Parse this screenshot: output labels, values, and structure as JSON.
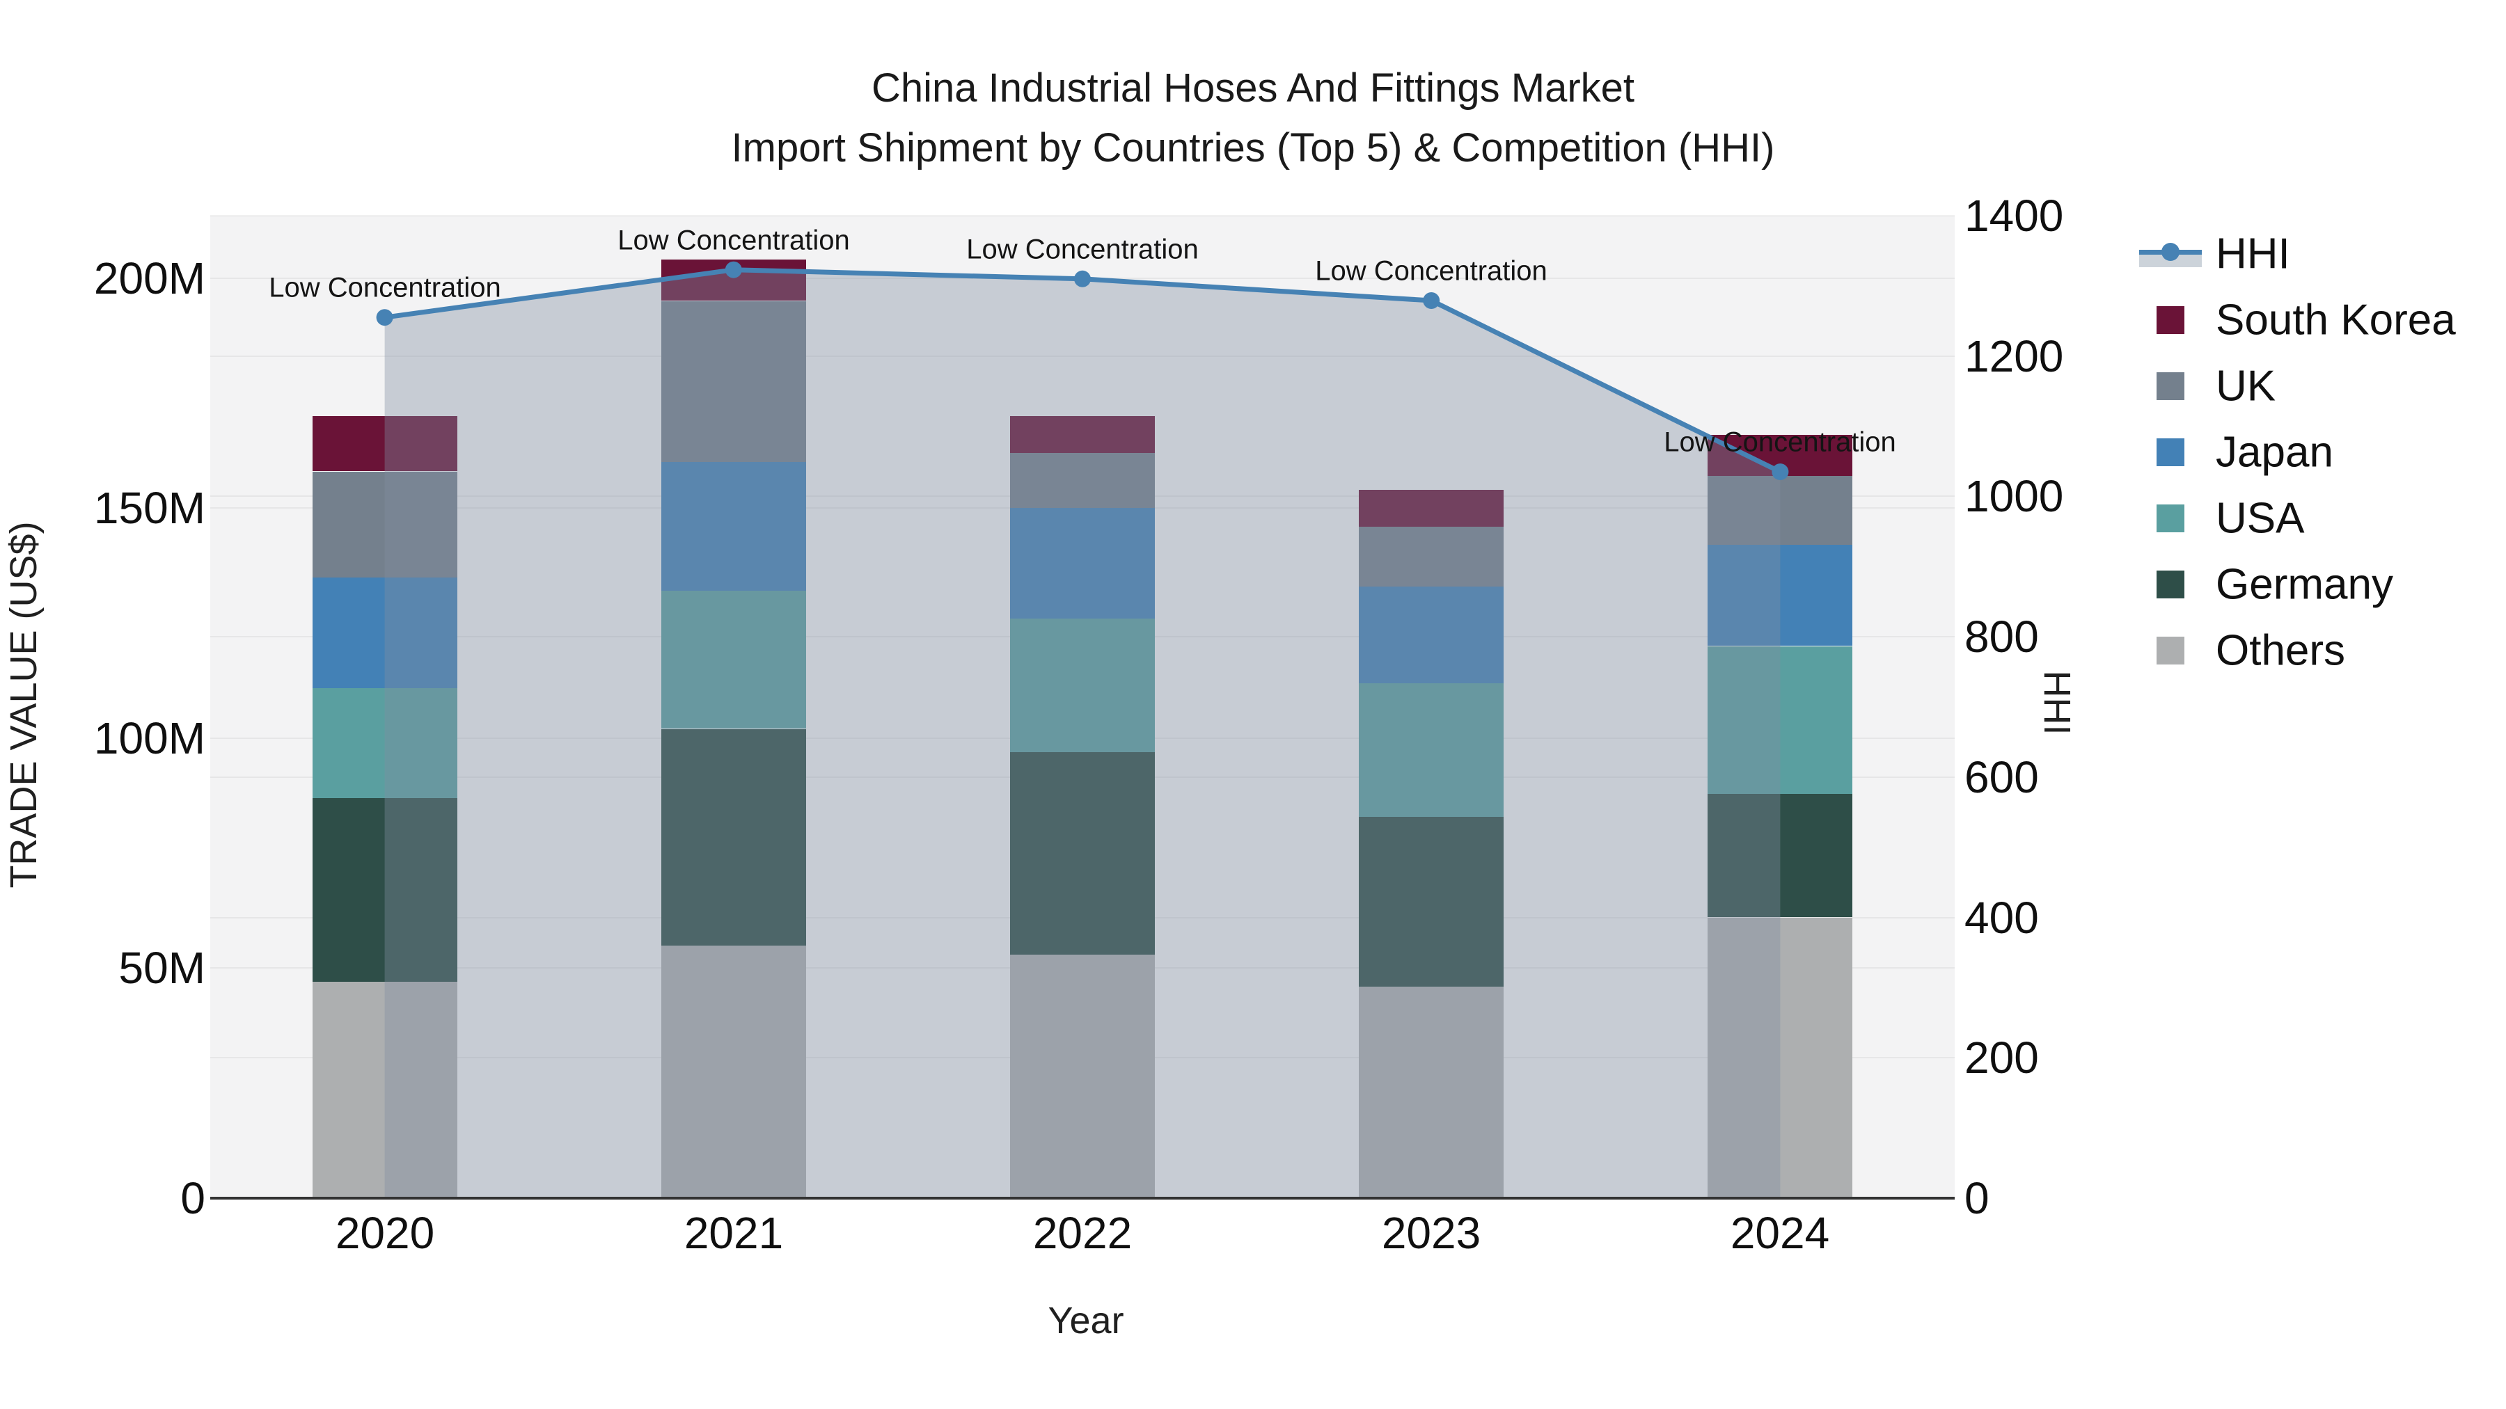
{
  "title": {
    "line1": "China Industrial Hoses And Fittings Market",
    "line2": "Import Shipment by Countries (Top 5) & Competition (HHI)"
  },
  "axes": {
    "y_left": {
      "title": "TRADE VALUE (US$)",
      "tick_labels": [
        "0",
        "50M",
        "100M",
        "150M",
        "200M"
      ],
      "tick_values": [
        0,
        50,
        100,
        150,
        200
      ]
    },
    "y_right": {
      "title": "HHI",
      "tick_labels": [
        "0",
        "200",
        "400",
        "600",
        "800",
        "1000",
        "1200",
        "1400"
      ],
      "tick_values": [
        0,
        200,
        400,
        600,
        800,
        1000,
        1200,
        1400
      ]
    },
    "x": {
      "title": "Year",
      "tick_labels": [
        "2020",
        "2021",
        "2022",
        "2023",
        "2024"
      ]
    }
  },
  "legend": {
    "items": [
      {
        "label": "HHI",
        "type": "line",
        "color": "#4682B4"
      },
      {
        "label": "South Korea",
        "type": "square",
        "color": "#6A1337"
      },
      {
        "label": "UK",
        "type": "square",
        "color": "#74808D"
      },
      {
        "label": "Japan",
        "type": "square",
        "color": "#4381B6"
      },
      {
        "label": "USA",
        "type": "square",
        "color": "#5A9FA0"
      },
      {
        "label": "Germany",
        "type": "square",
        "color": "#2E4E48"
      },
      {
        "label": "Others",
        "type": "square",
        "color": "#ADAFB0"
      }
    ]
  },
  "colors": {
    "hhi_line": "#4682B4",
    "hhi_area_fill": "rgba(130,142,161,0.38)",
    "south_korea": "#6A1337",
    "uk": "#74808D",
    "japan": "#4381B6",
    "usa": "#5A9FA0",
    "germany": "#2E4E48",
    "others": "#ADAFB0",
    "plot_background": "#f3f3f4"
  },
  "chart_data": {
    "type": "bar",
    "subtype": "stacked-bars-with-hhi-line-and-area-overlay",
    "title": "China Industrial Hoses And Fittings Market — Import Shipment by Countries (Top 5) & Competition (HHI)",
    "categories": [
      "2020",
      "2021",
      "2022",
      "2023",
      "2024"
    ],
    "value_unit": "million US$",
    "series": [
      {
        "name": "Others",
        "values": [
          47,
          55,
          53,
          46,
          61
        ]
      },
      {
        "name": "Germany",
        "values": [
          40,
          47,
          44,
          37,
          27
        ]
      },
      {
        "name": "USA",
        "values": [
          24,
          30,
          29,
          29,
          32
        ]
      },
      {
        "name": "Japan",
        "values": [
          24,
          28,
          24,
          21,
          22
        ]
      },
      {
        "name": "UK",
        "values": [
          23,
          35,
          12,
          13,
          15
        ]
      },
      {
        "name": "South Korea",
        "values": [
          12,
          9,
          8,
          8,
          9
        ]
      }
    ],
    "stack_totals_millions": [
      170,
      204,
      170,
      154,
      166
    ],
    "line_series": {
      "name": "HHI",
      "axis": "right",
      "values": [
        1255,
        1323,
        1310,
        1279,
        1035
      ],
      "area_fill": true
    },
    "annotations": [
      "Low Concentration",
      "Low Concentration",
      "Low Concentration",
      "Low Concentration",
      "Low Concentration"
    ],
    "xlabel": "Year",
    "ylabel_left": "TRADE VALUE (US$)",
    "ylabel_right": "HHI",
    "y_left_range_millions": [
      0,
      213.6
    ],
    "y_right_range": [
      0,
      1400
    ],
    "grid": true,
    "legend_position": "right"
  }
}
